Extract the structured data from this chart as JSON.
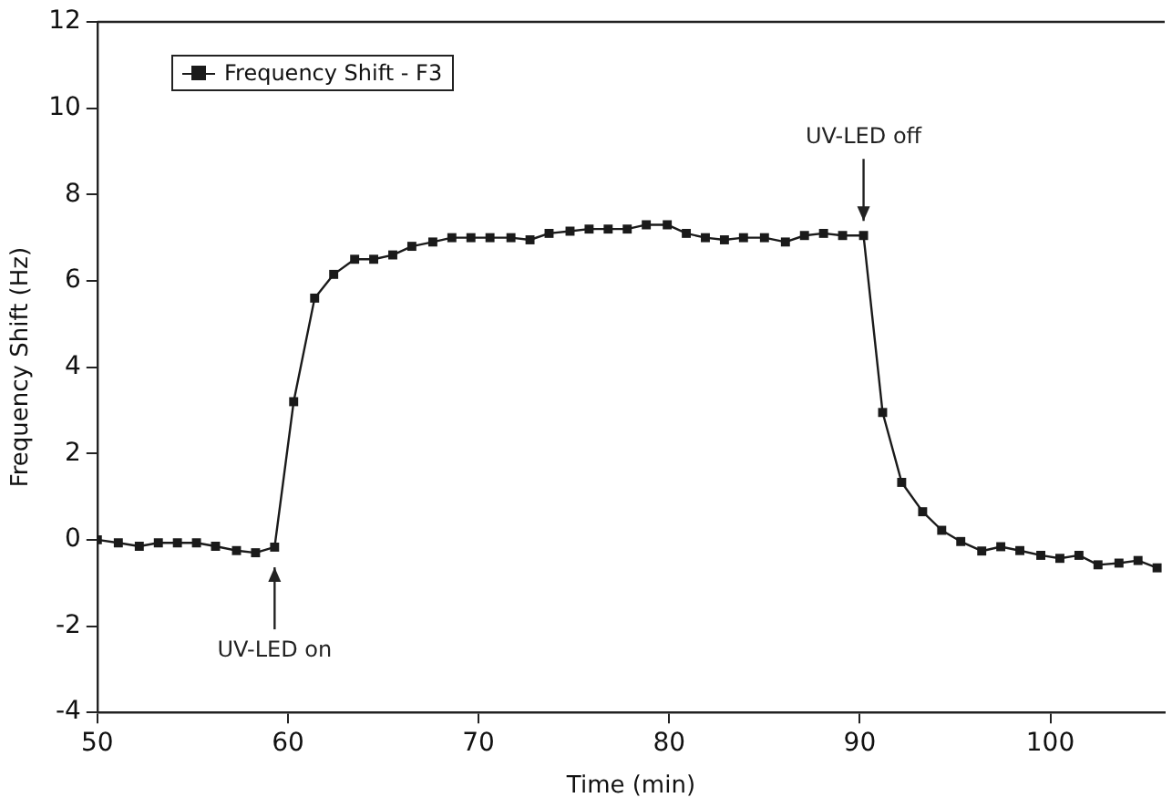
{
  "chart_data": {
    "type": "line",
    "xlabel": "Time (min)",
    "ylabel": "Frequency Shift (Hz)",
    "xlim": [
      50,
      106
    ],
    "xticks": [
      50,
      60,
      70,
      80,
      90,
      100
    ],
    "ylim": [
      -4,
      12
    ],
    "yticks": [
      -4,
      -2,
      0,
      2,
      4,
      6,
      8,
      10,
      12
    ],
    "grid": false,
    "legend": "top left",
    "marker": "square",
    "line_style": "solid",
    "x": [
      50,
      51.1,
      52.2,
      53.2,
      54.2,
      55.2,
      56.2,
      57.3,
      58.3,
      59.3,
      60.3,
      61.4,
      62.4,
      63.5,
      64.5,
      65.5,
      66.5,
      67.6,
      68.6,
      69.6,
      70.6,
      71.7,
      72.7,
      73.7,
      74.8,
      75.8,
      76.8,
      77.8,
      78.8,
      79.9,
      80.9,
      81.9,
      82.9,
      83.9,
      85,
      86.1,
      87.1,
      88.1,
      89.1,
      90.2,
      91.2,
      92.2,
      93.3,
      94.3,
      95.3,
      96.4,
      97.4,
      98.4,
      99.5,
      100.5,
      101.5,
      102.5,
      103.6,
      104.6,
      105.6
    ],
    "series": [
      {
        "name": "Frequency Shift - F3",
        "color": "#1a1a1a",
        "values": [
          0.0,
          -0.07,
          -0.15,
          -0.07,
          -0.07,
          -0.07,
          -0.15,
          -0.25,
          -0.3,
          -0.17,
          3.2,
          5.6,
          6.15,
          6.5,
          6.5,
          6.6,
          6.8,
          6.9,
          7.0,
          7.0,
          7.0,
          7.0,
          6.95,
          7.1,
          7.15,
          7.2,
          7.2,
          7.2,
          7.3,
          7.3,
          7.1,
          7.0,
          6.95,
          7.0,
          7.0,
          6.9,
          7.05,
          7.1,
          7.05,
          7.05,
          2.95,
          1.33,
          0.65,
          0.22,
          -0.04,
          -0.26,
          -0.16,
          -0.25,
          -0.36,
          -0.43,
          -0.36,
          -0.58,
          -0.54,
          -0.48,
          -0.65
        ]
      }
    ],
    "annotations": [
      {
        "text": "UV-LED on",
        "x": 59.3,
        "y": -0.3
      },
      {
        "text": "UV-LED off",
        "x": 90.2,
        "y": 7.05
      }
    ]
  }
}
